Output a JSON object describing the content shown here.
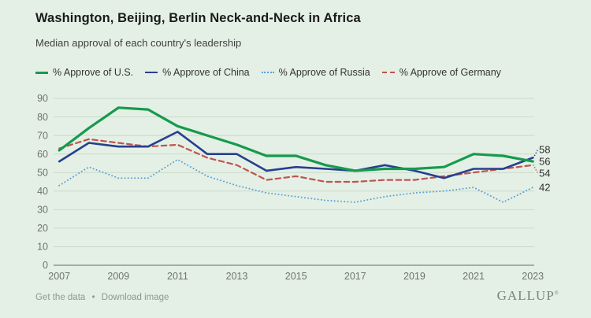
{
  "header": {
    "title": "Washington, Beijing, Berlin Neck-and-Neck in Africa",
    "subtitle": "Median approval of each country's leadership"
  },
  "footer": {
    "get_data_label": "Get the data",
    "separator": "•",
    "download_label": "Download image",
    "brand": "GALLUP",
    "brand_mark": "®"
  },
  "colors": {
    "background": "#e4f0e5",
    "grid": "#c9d9c9",
    "axis": "#5f6b5f",
    "tick_text": "#6e746e",
    "end_label_text": "#2f2f2f"
  },
  "chart_data": {
    "type": "line",
    "title": "Washington, Beijing, Berlin Neck-and-Neck in Africa",
    "subtitle": "Median approval of each country's leadership",
    "xlabel": "",
    "ylabel": "",
    "grid": "horizontal",
    "legend_position": "top",
    "ylim": [
      0,
      90
    ],
    "y_ticks": [
      0,
      10,
      20,
      30,
      40,
      50,
      60,
      70,
      80,
      90
    ],
    "x_ticks": [
      2007,
      2009,
      2011,
      2013,
      2015,
      2017,
      2019,
      2021,
      2023
    ],
    "x": [
      2007,
      2008,
      2009,
      2010,
      2011,
      2012,
      2013,
      2014,
      2015,
      2016,
      2017,
      2018,
      2019,
      2020,
      2021,
      2022,
      2023
    ],
    "series": [
      {
        "name": "% Approve of Russia",
        "color": "#5b9fd6",
        "style": "dotted",
        "width": 2,
        "values": [
          43,
          53,
          47,
          47,
          57,
          48,
          43,
          39,
          37,
          35,
          34,
          37,
          39,
          40,
          42,
          34,
          42
        ],
        "end_label": "42"
      },
      {
        "name": "% Approve of Germany",
        "color": "#bf544f",
        "style": "dashed",
        "width": 2.2,
        "values": [
          63,
          68,
          66,
          64,
          65,
          58,
          54,
          46,
          48,
          45,
          45,
          46,
          46,
          48,
          50,
          52,
          54
        ],
        "end_label": "54"
      },
      {
        "name": "% Approve of China",
        "color": "#273f8f",
        "style": "solid",
        "width": 2.6,
        "values": [
          56,
          66,
          64,
          64,
          72,
          60,
          60,
          51,
          53,
          52,
          51,
          54,
          51,
          47,
          52,
          52,
          58
        ],
        "end_label": "58"
      },
      {
        "name": "% Approve of U.S.",
        "color": "#169a4d",
        "style": "solid",
        "width": 3.2,
        "values": [
          62,
          74,
          85,
          84,
          75,
          70,
          65,
          59,
          59,
          54,
          51,
          52,
          52,
          53,
          60,
          59,
          56
        ],
        "end_label": "56"
      }
    ],
    "legend_order": [
      "% Approve of U.S.",
      "% Approve of China",
      "% Approve of Russia",
      "% Approve of Germany"
    ]
  }
}
